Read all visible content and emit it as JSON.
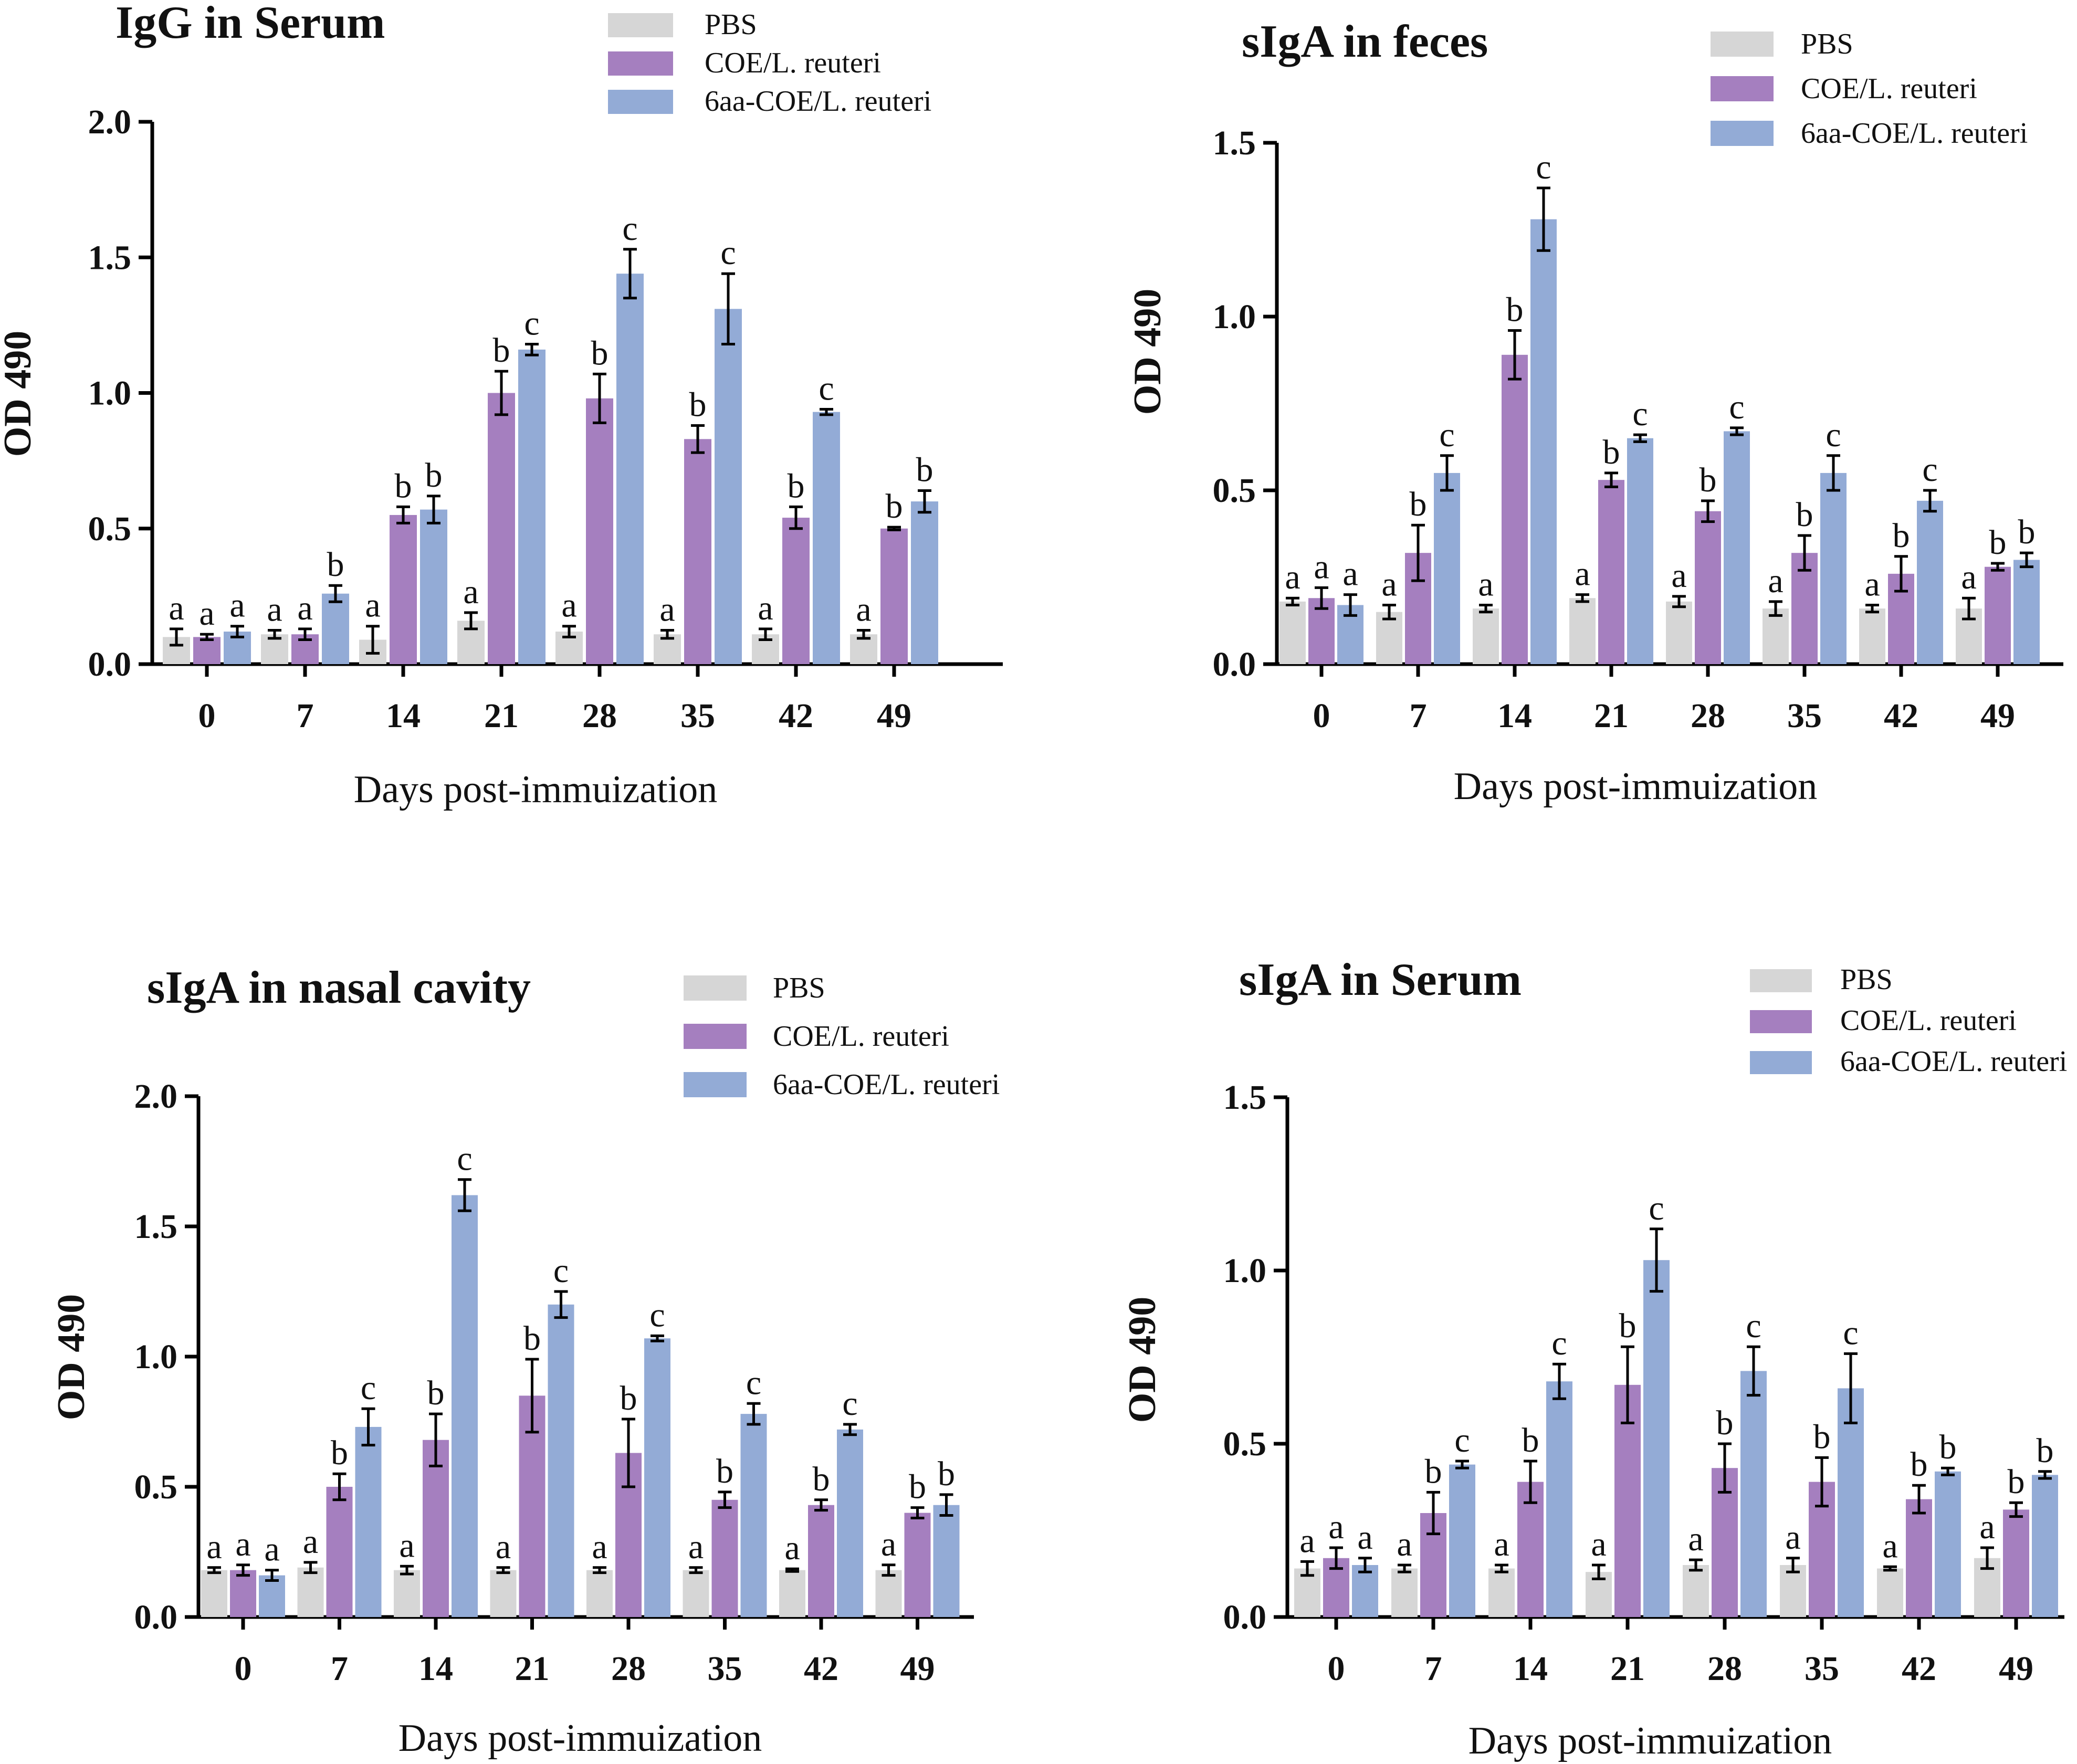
{
  "figure": {
    "legend_entries": [
      "PBS",
      "COE/L. reuteri",
      "6aa-COE/L. reuteri"
    ],
    "colors": {
      "pbs": "#d6d6d6",
      "coe": "#a57fbf",
      "aa6": "#93abd6",
      "axis": "#000000",
      "error": "#000000"
    }
  },
  "chart_data": [
    {
      "type": "bar",
      "title": "IgG in Serum",
      "xlabel": "Days  post-immuization",
      "ylabel": "OD 490",
      "ylim": [
        0,
        2.0
      ],
      "yticks": [
        "0.0",
        "0.5",
        "1.0",
        "1.5",
        "2.0"
      ],
      "categories": [
        "0",
        "7",
        "14",
        "21",
        "28",
        "35",
        "42",
        "49"
      ],
      "series": [
        {
          "name": "PBS",
          "values": [
            0.1,
            0.11,
            0.09,
            0.16,
            0.12,
            0.11,
            0.11,
            0.11
          ],
          "errors": [
            0.03,
            0.015,
            0.05,
            0.03,
            0.02,
            0.015,
            0.02,
            0.015
          ],
          "labels": [
            "a",
            "a",
            "a",
            "a",
            "a",
            "a",
            "a",
            "a"
          ]
        },
        {
          "name": "COE/L. reuteri",
          "values": [
            0.1,
            0.11,
            0.55,
            1.0,
            0.98,
            0.83,
            0.54,
            0.5
          ],
          "errors": [
            0.01,
            0.02,
            0.03,
            0.08,
            0.09,
            0.05,
            0.04,
            0.005
          ],
          "labels": [
            "a",
            "a",
            "b",
            "b",
            "b",
            "b",
            "b",
            "b"
          ]
        },
        {
          "name": "6aa-COE/L. reuteri",
          "values": [
            0.12,
            0.26,
            0.57,
            1.16,
            1.44,
            1.31,
            0.93,
            0.6
          ],
          "errors": [
            0.02,
            0.03,
            0.05,
            0.02,
            0.09,
            0.13,
            0.01,
            0.04
          ],
          "labels": [
            "a",
            "b",
            "b",
            "c",
            "c",
            "c",
            "c",
            "b"
          ]
        }
      ]
    },
    {
      "type": "bar",
      "title": "sIgA in feces",
      "xlabel": "Days  post-immuization",
      "ylabel": "OD 490",
      "ylim": [
        0,
        1.5
      ],
      "yticks": [
        "0.0",
        "0.5",
        "1.0",
        "1.5"
      ],
      "categories": [
        "0",
        "7",
        "14",
        "21",
        "28",
        "35",
        "42",
        "49"
      ],
      "series": [
        {
          "name": "PBS",
          "values": [
            0.18,
            0.15,
            0.16,
            0.19,
            0.18,
            0.16,
            0.16,
            0.16
          ],
          "errors": [
            0.01,
            0.02,
            0.01,
            0.01,
            0.015,
            0.02,
            0.01,
            0.03
          ],
          "labels": [
            "a",
            "a",
            "a",
            "a",
            "a",
            "a",
            "a",
            "a"
          ]
        },
        {
          "name": "COE/L. reuteri",
          "values": [
            0.19,
            0.32,
            0.89,
            0.53,
            0.44,
            0.32,
            0.26,
            0.28
          ],
          "errors": [
            0.03,
            0.08,
            0.07,
            0.02,
            0.03,
            0.05,
            0.05,
            0.01
          ],
          "labels": [
            "a",
            "b",
            "b",
            "b",
            "b",
            "b",
            "b",
            "b"
          ]
        },
        {
          "name": "6aa-COE/L. reuteri",
          "values": [
            0.17,
            0.55,
            1.28,
            0.65,
            0.67,
            0.55,
            0.47,
            0.3
          ],
          "errors": [
            0.03,
            0.05,
            0.09,
            0.01,
            0.01,
            0.05,
            0.03,
            0.02
          ],
          "labels": [
            "a",
            "c",
            "c",
            "c",
            "c",
            "c",
            "c",
            "b"
          ]
        }
      ]
    },
    {
      "type": "bar",
      "title": "sIgA in nasal cavity",
      "xlabel": "Days  post-immuization",
      "ylabel": "OD 490",
      "ylim": [
        0,
        2.0
      ],
      "yticks": [
        "0.0",
        "0.5",
        "1.0",
        "1.5",
        "2.0"
      ],
      "categories": [
        "0",
        "7",
        "14",
        "21",
        "28",
        "35",
        "42",
        "49"
      ],
      "series": [
        {
          "name": "PBS",
          "values": [
            0.18,
            0.19,
            0.18,
            0.18,
            0.18,
            0.18,
            0.18,
            0.18
          ],
          "errors": [
            0.01,
            0.02,
            0.015,
            0.01,
            0.01,
            0.01,
            0.005,
            0.02
          ],
          "labels": [
            "a",
            "a",
            "a",
            "a",
            "a",
            "a",
            "a",
            "a"
          ]
        },
        {
          "name": "COE/L. reuteri",
          "values": [
            0.18,
            0.5,
            0.68,
            0.85,
            0.63,
            0.45,
            0.43,
            0.4
          ],
          "errors": [
            0.02,
            0.05,
            0.1,
            0.14,
            0.13,
            0.03,
            0.02,
            0.02
          ],
          "labels": [
            "a",
            "b",
            "b",
            "b",
            "b",
            "b",
            "b",
            "b"
          ]
        },
        {
          "name": "6aa-COE/L. reuteri",
          "values": [
            0.16,
            0.73,
            1.62,
            1.2,
            1.07,
            0.78,
            0.72,
            0.43
          ],
          "errors": [
            0.02,
            0.07,
            0.06,
            0.05,
            0.01,
            0.04,
            0.02,
            0.04
          ],
          "labels": [
            "a",
            "c",
            "c",
            "c",
            "c",
            "c",
            "c",
            "b"
          ]
        }
      ]
    },
    {
      "type": "bar",
      "title": "sIgA in Serum",
      "xlabel": "Days  post-immuization",
      "ylabel": "OD 490",
      "ylim": [
        0,
        1.5
      ],
      "yticks": [
        "0.0",
        "0.5",
        "1.0",
        "1.5"
      ],
      "categories": [
        "0",
        "7",
        "14",
        "21",
        "28",
        "35",
        "42",
        "49"
      ],
      "series": [
        {
          "name": "PBS",
          "values": [
            0.14,
            0.14,
            0.14,
            0.13,
            0.15,
            0.15,
            0.14,
            0.17
          ],
          "errors": [
            0.02,
            0.01,
            0.01,
            0.02,
            0.015,
            0.02,
            0.005,
            0.03
          ],
          "labels": [
            "a",
            "a",
            "a",
            "a",
            "a",
            "a",
            "a",
            "a"
          ]
        },
        {
          "name": "COE/L. reuteri",
          "values": [
            0.17,
            0.3,
            0.39,
            0.67,
            0.43,
            0.39,
            0.34,
            0.31
          ],
          "errors": [
            0.03,
            0.06,
            0.06,
            0.11,
            0.07,
            0.07,
            0.04,
            0.02
          ],
          "labels": [
            "a",
            "b",
            "b",
            "b",
            "b",
            "b",
            "b",
            "b"
          ]
        },
        {
          "name": "6aa-COE/L. reuteri",
          "values": [
            0.15,
            0.44,
            0.68,
            1.03,
            0.71,
            0.66,
            0.42,
            0.41
          ],
          "errors": [
            0.02,
            0.01,
            0.05,
            0.09,
            0.07,
            0.1,
            0.01,
            0.01
          ],
          "labels": [
            "a",
            "c",
            "c",
            "c",
            "c",
            "c",
            "b",
            "b"
          ]
        }
      ]
    }
  ]
}
